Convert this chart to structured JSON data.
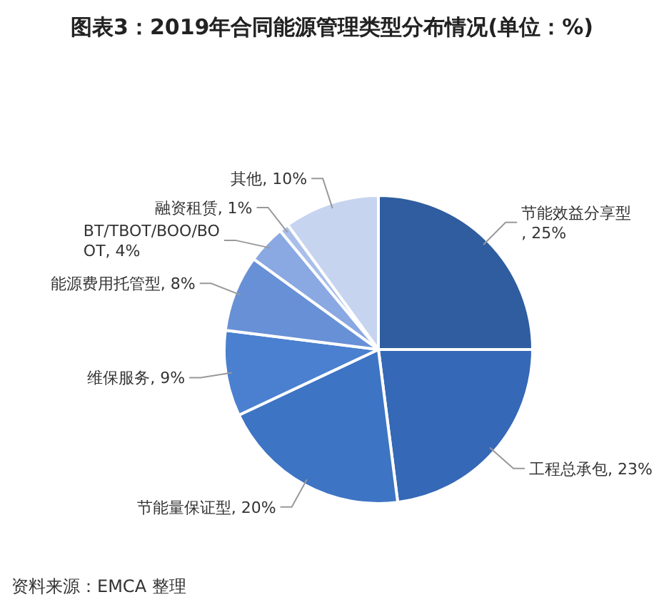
{
  "chart_data": {
    "type": "pie",
    "title": "图表3：2019年合同能源管理类型分布情况(单位：%)",
    "categories": [
      "节能效益分享型",
      "工程总承包",
      "节能量保证型",
      "维保服务",
      "能源费用托管型",
      "BT/TBOT/BOO/BOOT",
      "融资租赁",
      "其他"
    ],
    "values": [
      25,
      23,
      20,
      9,
      8,
      4,
      1,
      10
    ],
    "colors": [
      "#2f5d9f",
      "#3568b6",
      "#3e74c4",
      "#4a80cf",
      "#6890d6",
      "#8aa8e2",
      "#a9bfea",
      "#c6d4f0"
    ],
    "value_labels": [
      ", 25%",
      ", 23%",
      ", 20%",
      ", 9%",
      ", 8%",
      ", 4%",
      ", 1%",
      ", 10%"
    ],
    "annotations": [
      "资料来源：EMCA 整理"
    ]
  }
}
